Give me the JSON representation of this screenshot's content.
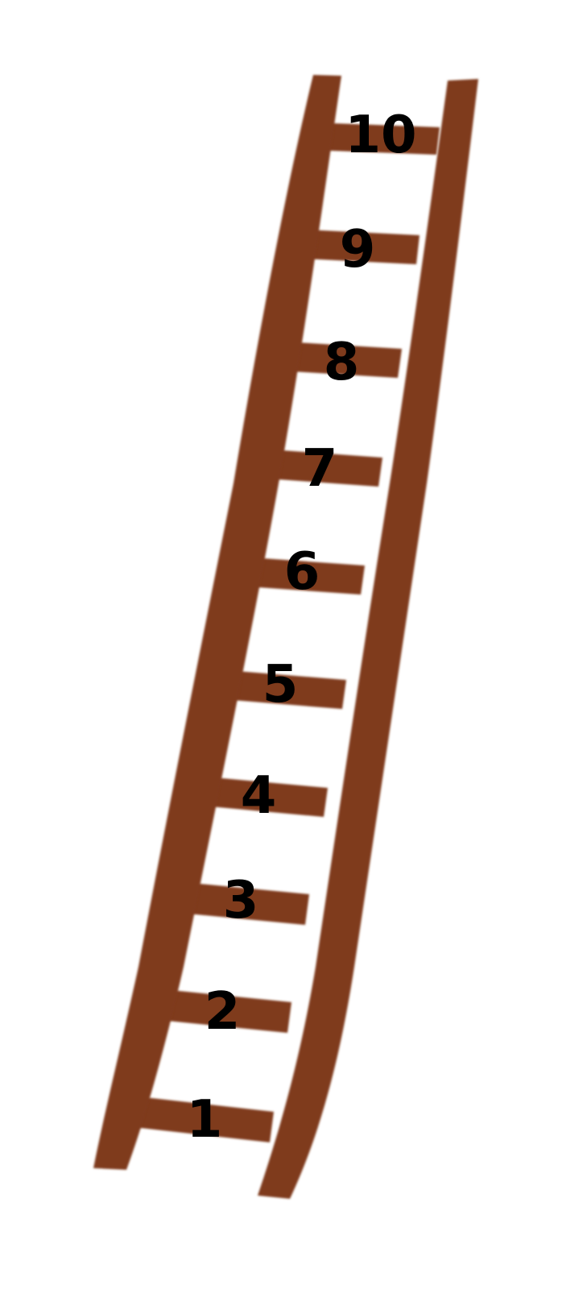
{
  "ladder": {
    "wood_color": "#7f3a1c",
    "text_color": "#000000",
    "rung_labels": [
      "1",
      "2",
      "3",
      "4",
      "5",
      "6",
      "7",
      "8",
      "9",
      "10"
    ]
  }
}
